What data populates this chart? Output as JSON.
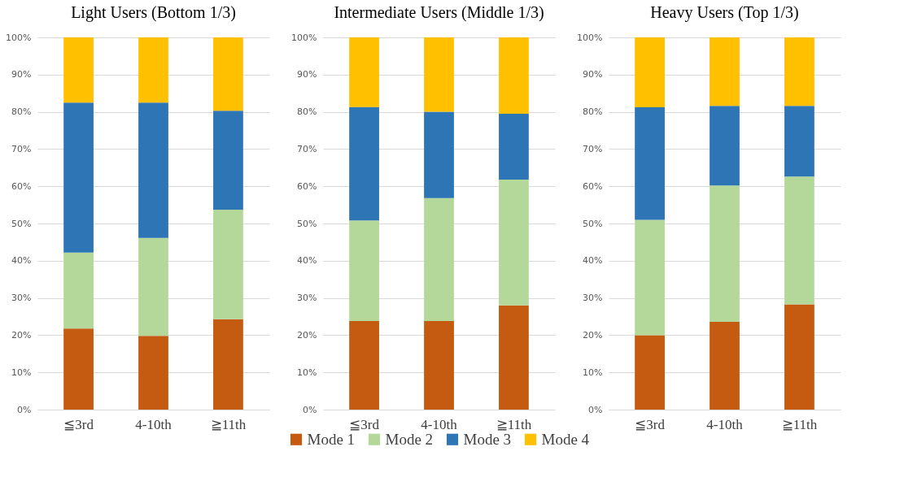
{
  "chart_data": [
    {
      "type": "bar",
      "stacked": true,
      "title": "Light Users (Bottom 1/3)",
      "categories": [
        "≦3rd",
        "4-10th",
        "≧11th"
      ],
      "ylim": [
        0,
        100
      ],
      "yticks": [
        {
          "value": 0,
          "label": "0%"
        },
        {
          "value": 10,
          "label": "10%"
        },
        {
          "value": 20,
          "label": "20%"
        },
        {
          "value": 30,
          "label": "30%"
        },
        {
          "value": 40,
          "label": "40%"
        },
        {
          "value": 50,
          "label": "50%"
        },
        {
          "value": 60,
          "label": "60%"
        },
        {
          "value": 70,
          "label": "70%"
        },
        {
          "value": 80,
          "label": "80%"
        },
        {
          "value": 90,
          "label": "90%"
        },
        {
          "value": 100,
          "label": "100%"
        }
      ],
      "grid": "y",
      "legend": "bottom",
      "series": [
        {
          "name": "Mode 1",
          "color": "#c55a11",
          "values": [
            21.8,
            19.8,
            24.3
          ]
        },
        {
          "name": "Mode 2",
          "color": "#b4d89a",
          "values": [
            20.4,
            26.3,
            29.4
          ]
        },
        {
          "name": "Mode 3",
          "color": "#2e75b6",
          "values": [
            40.3,
            36.4,
            26.6
          ]
        },
        {
          "name": "Mode 4",
          "color": "#ffc000",
          "values": [
            17.5,
            17.5,
            19.7
          ]
        }
      ]
    },
    {
      "type": "bar",
      "stacked": true,
      "title": "Intermediate Users (Middle 1/3)",
      "categories": [
        "≦3rd",
        "4-10th",
        "≧11th"
      ],
      "ylim": [
        0,
        100
      ],
      "yticks": [
        {
          "value": 0,
          "label": "0%"
        },
        {
          "value": 10,
          "label": "10%"
        },
        {
          "value": 20,
          "label": "20%"
        },
        {
          "value": 30,
          "label": "30%"
        },
        {
          "value": 40,
          "label": "40%"
        },
        {
          "value": 50,
          "label": "50%"
        },
        {
          "value": 60,
          "label": "60%"
        },
        {
          "value": 70,
          "label": "70%"
        },
        {
          "value": 80,
          "label": "80%"
        },
        {
          "value": 90,
          "label": "90%"
        },
        {
          "value": 100,
          "label": "100%"
        }
      ],
      "grid": "y",
      "legend": false,
      "series": [
        {
          "color": "#c55a11",
          "values": [
            23.8,
            23.8,
            28.0
          ]
        },
        {
          "color": "#b4d89a",
          "values": [
            27.0,
            33.0,
            33.8
          ]
        },
        {
          "color": "#2e75b6",
          "values": [
            30.5,
            23.2,
            17.7
          ]
        },
        {
          "color": "#ffc000",
          "values": [
            18.7,
            20.0,
            20.5
          ]
        }
      ]
    },
    {
      "type": "bar",
      "stacked": true,
      "title": "Heavy Users (Top 1/3)",
      "categories": [
        "≦3rd",
        "4-10th",
        "≧11th"
      ],
      "ylim": [
        0,
        100
      ],
      "yticks": [
        {
          "value": 0,
          "label": "0%"
        },
        {
          "value": 10,
          "label": "10%"
        },
        {
          "value": 20,
          "label": "20%"
        },
        {
          "value": 30,
          "label": "30%"
        },
        {
          "value": 40,
          "label": "40%"
        },
        {
          "value": 50,
          "label": "50%"
        },
        {
          "value": 60,
          "label": "60%"
        },
        {
          "value": 70,
          "label": "70%"
        },
        {
          "value": 80,
          "label": "80%"
        },
        {
          "value": 90,
          "label": "90%"
        },
        {
          "value": 100,
          "label": "100%"
        }
      ],
      "grid": "y",
      "legend": false,
      "series": [
        {
          "color": "#c55a11",
          "values": [
            20.0,
            23.6,
            28.3
          ]
        },
        {
          "color": "#b4d89a",
          "values": [
            31.0,
            36.6,
            34.3
          ]
        },
        {
          "color": "#2e75b6",
          "values": [
            30.2,
            21.4,
            19.0
          ]
        },
        {
          "color": "#ffc000",
          "values": [
            18.8,
            18.4,
            18.4
          ]
        }
      ]
    }
  ]
}
